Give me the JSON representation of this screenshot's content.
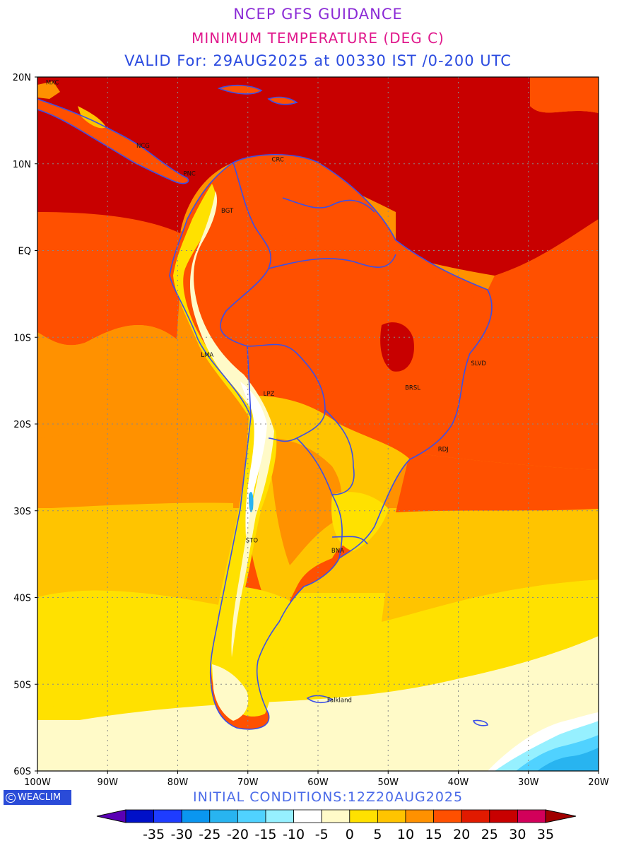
{
  "header": {
    "line1": "NCEP GFS GUIDANCE",
    "line2": "MINIMUM TEMPERATURE (DEG C)",
    "line3": "VALID For: 29AUG2025 at 00330 IST /0-200 UTC"
  },
  "colors": {
    "title1": "#8b2bd6",
    "title2": "#e0188c",
    "title3": "#2b4be0",
    "coastline": "#3b4fe8"
  },
  "axes": {
    "lat_labels": [
      "20N",
      "10N",
      "EQ",
      "10S",
      "20S",
      "30S",
      "40S",
      "50S",
      "60S"
    ],
    "lon_labels": [
      "100W",
      "90W",
      "80W",
      "70W",
      "60W",
      "50W",
      "40W",
      "30W",
      "20W"
    ]
  },
  "cities": [
    {
      "code": "MXC",
      "lon": -99.1,
      "lat": 19.4
    },
    {
      "code": "NCG",
      "lon": -86.2,
      "lat": 12.1
    },
    {
      "code": "PNC",
      "lon": -79.5,
      "lat": 8.9
    },
    {
      "code": "CRC",
      "lon": -66.9,
      "lat": 10.5
    },
    {
      "code": "BGT",
      "lon": -74.1,
      "lat": 4.6
    },
    {
      "code": "LMA",
      "lon": -77.0,
      "lat": -12.0
    },
    {
      "code": "LPZ",
      "lon": -68.1,
      "lat": -16.5
    },
    {
      "code": "BRSL",
      "lon": -47.9,
      "lat": -15.8
    },
    {
      "code": "SLVD",
      "lon": -38.5,
      "lat": -13.0
    },
    {
      "code": "RDJ",
      "lon": -43.2,
      "lat": -22.9
    },
    {
      "code": "STO",
      "lon": -70.6,
      "lat": -33.4
    },
    {
      "code": "BNA",
      "lon": -58.4,
      "lat": -34.6
    },
    {
      "code": "Falkland",
      "lon": -59.0,
      "lat": -51.8
    }
  ],
  "footer": {
    "badge": "WEACLIM",
    "initial_conditions": "INITIAL CONDITIONS:12Z20AUG2025"
  },
  "legend": {
    "labels": [
      "-35",
      "-30",
      "-25",
      "-20",
      "-15",
      "-10",
      "-5",
      "0",
      "5",
      "10",
      "15",
      "20",
      "25",
      "30",
      "35"
    ],
    "colors": [
      "#5a00b4",
      "#0010c8",
      "#1e3cff",
      "#0a96f0",
      "#28b4f0",
      "#50d2ff",
      "#96f0ff",
      "#ffffff",
      "#fffac8",
      "#ffe100",
      "#ffc400",
      "#ff9100",
      "#ff5000",
      "#e11a00",
      "#c80000",
      "#d2005a",
      "#a00000"
    ]
  }
}
